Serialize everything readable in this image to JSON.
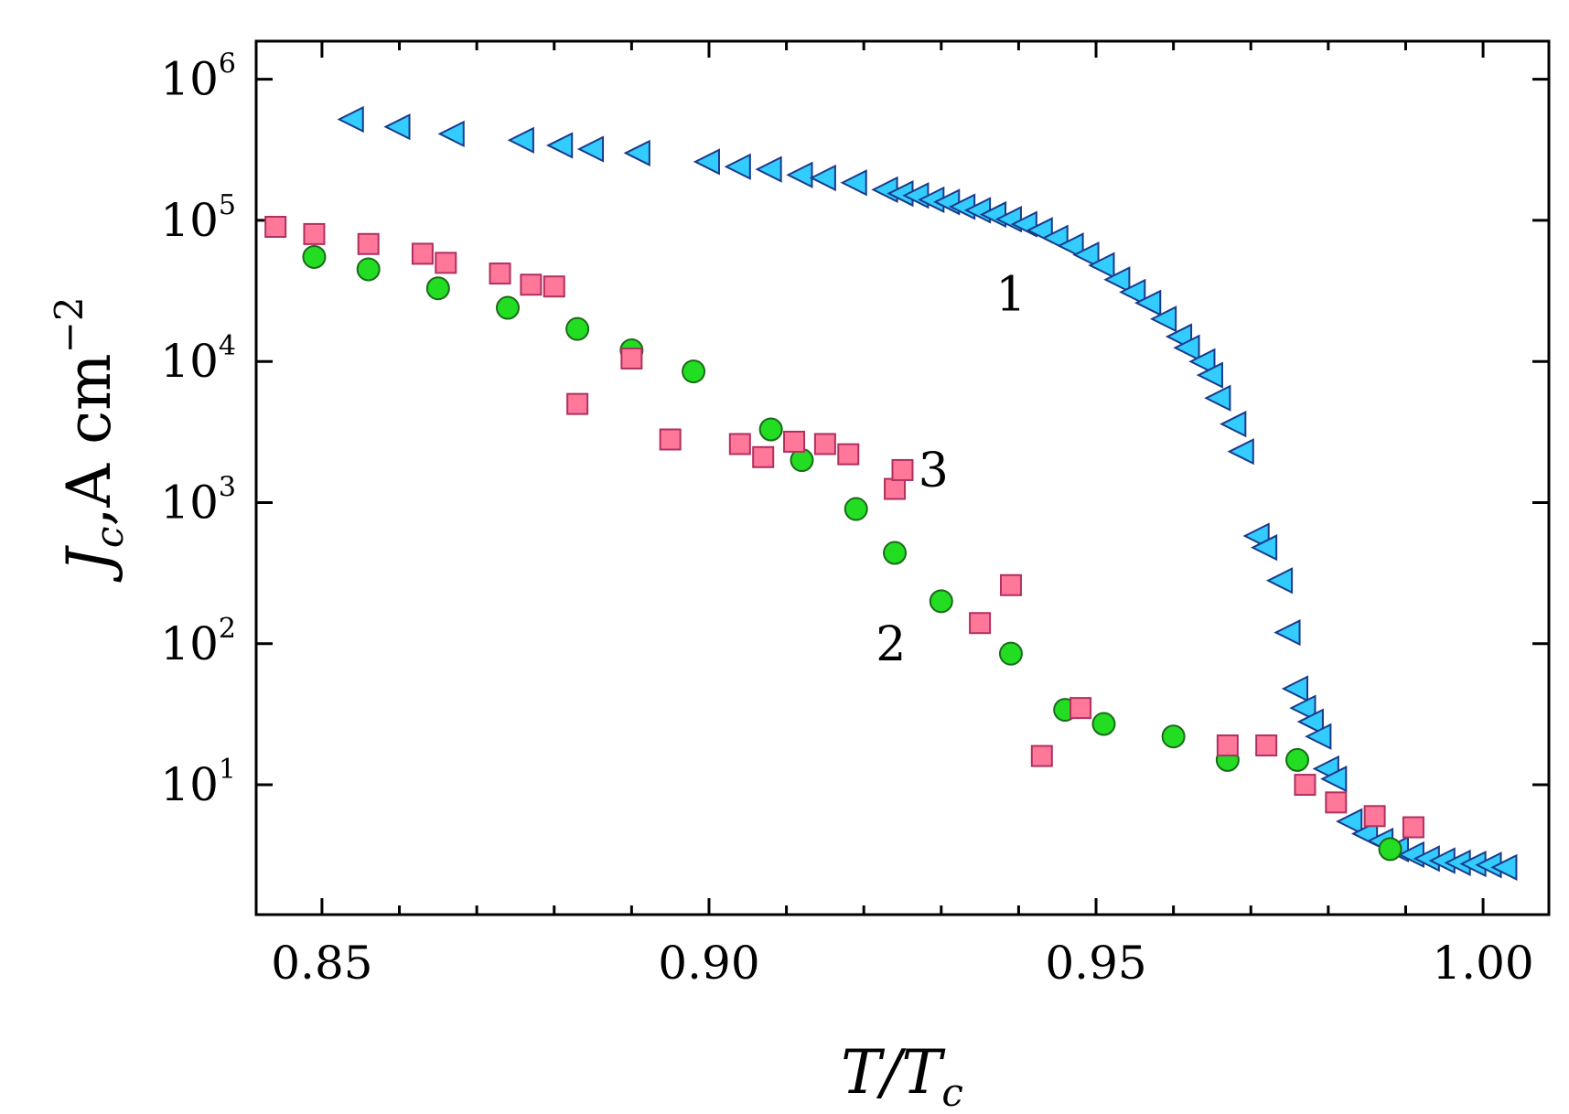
{
  "chart_data": {
    "type": "scatter",
    "title": "",
    "xlabel": {
      "main": "T/T",
      "sub": "c"
    },
    "ylabel": {
      "main": "J",
      "sub": "c",
      "rest": ",A cm",
      "sup": "−2"
    },
    "x_ticks": [
      "0.85",
      "0.90",
      "0.95",
      "1.00"
    ],
    "x_tick_values": [
      0.85,
      0.9,
      0.95,
      1.0
    ],
    "y_ticks": [
      {
        "base": "10",
        "exp": "1",
        "value": 10
      },
      {
        "base": "10",
        "exp": "2",
        "value": 100
      },
      {
        "base": "10",
        "exp": "3",
        "value": 1000
      },
      {
        "base": "10",
        "exp": "4",
        "value": 10000
      },
      {
        "base": "10",
        "exp": "5",
        "value": 100000
      },
      {
        "base": "10",
        "exp": "6",
        "value": 1000000
      }
    ],
    "xlim": [
      0.8415,
      1.0085
    ],
    "ylim_log10": [
      0.08,
      6.27
    ],
    "yscale": "log",
    "grid": false,
    "annotations": [
      {
        "text": "1",
        "x": 0.939,
        "y": 30000
      },
      {
        "text": "2",
        "x": 0.9235,
        "y": 100
      },
      {
        "text": "3",
        "x": 0.929,
        "y": 1700
      }
    ],
    "series": [
      {
        "name": "1",
        "marker": "triangle-left",
        "color": "#33ccff",
        "edge": "#1a3a8a",
        "points": [
          [
            0.854,
            520000
          ],
          [
            0.86,
            460000
          ],
          [
            0.867,
            410000
          ],
          [
            0.876,
            370000
          ],
          [
            0.881,
            340000
          ],
          [
            0.885,
            320000
          ],
          [
            0.891,
            300000
          ],
          [
            0.9,
            260000
          ],
          [
            0.904,
            240000
          ],
          [
            0.908,
            230000
          ],
          [
            0.912,
            210000
          ],
          [
            0.915,
            200000
          ],
          [
            0.919,
            185000
          ],
          [
            0.923,
            165000
          ],
          [
            0.925,
            155000
          ],
          [
            0.927,
            150000
          ],
          [
            0.929,
            140000
          ],
          [
            0.931,
            135000
          ],
          [
            0.933,
            125000
          ],
          [
            0.935,
            118000
          ],
          [
            0.937,
            110000
          ],
          [
            0.939,
            102000
          ],
          [
            0.941,
            94000
          ],
          [
            0.943,
            85000
          ],
          [
            0.945,
            75000
          ],
          [
            0.947,
            66000
          ],
          [
            0.949,
            57000
          ],
          [
            0.951,
            48000
          ],
          [
            0.953,
            38000
          ],
          [
            0.955,
            31000
          ],
          [
            0.957,
            26000
          ],
          [
            0.959,
            20000
          ],
          [
            0.961,
            15000
          ],
          [
            0.962,
            12500
          ],
          [
            0.964,
            10000
          ],
          [
            0.965,
            8000
          ],
          [
            0.966,
            5500
          ],
          [
            0.968,
            3600
          ],
          [
            0.969,
            2300
          ],
          [
            0.971,
            580
          ],
          [
            0.972,
            480
          ],
          [
            0.974,
            280
          ],
          [
            0.975,
            120
          ],
          [
            0.976,
            48
          ],
          [
            0.977,
            35
          ],
          [
            0.978,
            28
          ],
          [
            0.979,
            22
          ],
          [
            0.98,
            13
          ],
          [
            0.981,
            11
          ],
          [
            0.983,
            5.5
          ],
          [
            0.985,
            4.5
          ],
          [
            0.987,
            4.0
          ],
          [
            0.989,
            3.5
          ],
          [
            0.991,
            3.2
          ],
          [
            0.993,
            3.0
          ],
          [
            0.995,
            2.9
          ],
          [
            0.997,
            2.8
          ],
          [
            0.999,
            2.75
          ],
          [
            1.001,
            2.7
          ],
          [
            1.003,
            2.6
          ]
        ]
      },
      {
        "name": "2",
        "marker": "circle",
        "color": "#22dd22",
        "edge": "#1a6a1a",
        "points": [
          [
            0.849,
            55000
          ],
          [
            0.856,
            45000
          ],
          [
            0.865,
            33000
          ],
          [
            0.874,
            24000
          ],
          [
            0.883,
            17000
          ],
          [
            0.89,
            12000
          ],
          [
            0.898,
            8500
          ],
          [
            0.908,
            3300
          ],
          [
            0.912,
            2000
          ],
          [
            0.919,
            900
          ],
          [
            0.924,
            440
          ],
          [
            0.93,
            200
          ],
          [
            0.939,
            85
          ],
          [
            0.946,
            34
          ],
          [
            0.951,
            27
          ],
          [
            0.96,
            22
          ],
          [
            0.967,
            15
          ],
          [
            0.976,
            15
          ],
          [
            0.988,
            3.5
          ]
        ]
      },
      {
        "name": "3",
        "marker": "square",
        "color": "#ff7799",
        "edge": "#b03060",
        "points": [
          [
            0.844,
            90000
          ],
          [
            0.849,
            80000
          ],
          [
            0.856,
            68000
          ],
          [
            0.863,
            58000
          ],
          [
            0.866,
            50000
          ],
          [
            0.873,
            42000
          ],
          [
            0.877,
            35000
          ],
          [
            0.88,
            34000
          ],
          [
            0.883,
            5000
          ],
          [
            0.89,
            10500
          ],
          [
            0.895,
            2800
          ],
          [
            0.904,
            2600
          ],
          [
            0.907,
            2100
          ],
          [
            0.911,
            2700
          ],
          [
            0.915,
            2600
          ],
          [
            0.918,
            2200
          ],
          [
            0.924,
            1250
          ],
          [
            0.925,
            1700
          ],
          [
            0.935,
            140
          ],
          [
            0.939,
            260
          ],
          [
            0.943,
            16
          ],
          [
            0.948,
            35
          ],
          [
            0.967,
            19
          ],
          [
            0.972,
            19
          ],
          [
            0.977,
            10
          ],
          [
            0.981,
            7.5
          ],
          [
            0.986,
            6
          ],
          [
            0.991,
            5
          ]
        ]
      }
    ]
  }
}
